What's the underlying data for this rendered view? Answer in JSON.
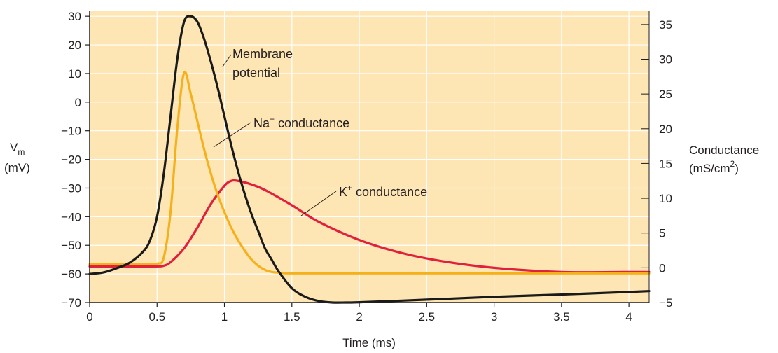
{
  "chart_data": {
    "type": "line",
    "xlabel": "Time (ms)",
    "ylabel_left": {
      "symbol": "V",
      "subscript": "m",
      "unit": "(mV)"
    },
    "ylabel_right": {
      "line1": "Conductance",
      "line2_pre": "(mS/cm",
      "line2_sup": "2",
      "line2_post": ")"
    },
    "xlim": [
      0,
      4.15
    ],
    "ylim_left": [
      -70,
      32
    ],
    "ylim_right": [
      -5,
      37
    ],
    "grid": true,
    "legend": "none",
    "x_ticks": [
      0,
      0.5,
      1,
      1.5,
      2,
      2.5,
      3,
      3.5,
      4
    ],
    "x_tick_labels": [
      "0",
      "0.5",
      "1",
      "1.5",
      "2",
      "2.5",
      "3",
      "3.5",
      "4"
    ],
    "y_left_ticks": [
      30,
      20,
      10,
      0,
      -10,
      -20,
      -30,
      -40,
      -50,
      -60,
      -70
    ],
    "y_left_tick_labels": [
      "30",
      "20",
      "10",
      "0",
      "−10",
      "−20",
      "−30",
      "−40",
      "−50",
      "−60",
      "−70"
    ],
    "y_right_ticks": [
      35,
      30,
      25,
      20,
      15,
      10,
      5,
      0,
      -5
    ],
    "y_right_tick_labels": [
      "35",
      "30",
      "25",
      "20",
      "15",
      "10",
      "5",
      "0",
      "−5"
    ],
    "colors": {
      "plot_bg": "#fde5b4",
      "grid": "#ffffff",
      "membrane": "#1a1a1a",
      "na": "#f5b11c",
      "k": "#e0203c",
      "text": "#231f20"
    },
    "series": [
      {
        "name": "Membrane potential",
        "axis": "left",
        "x": [
          0,
          0.1,
          0.2,
          0.3,
          0.4,
          0.45,
          0.5,
          0.55,
          0.6,
          0.65,
          0.7,
          0.75,
          0.8,
          0.85,
          0.9,
          0.95,
          1.0,
          1.05,
          1.1,
          1.15,
          1.2,
          1.25,
          1.3,
          1.35,
          1.4,
          1.5,
          1.6,
          1.7,
          1.8,
          1.9,
          2.0,
          2.5,
          3.0,
          3.5,
          4.0,
          4.15
        ],
        "y": [
          -60,
          -59.5,
          -58,
          -56,
          -52,
          -48,
          -40,
          -25,
          -5,
          15,
          28,
          30,
          28,
          22,
          14,
          5,
          -5,
          -15,
          -24,
          -32,
          -39,
          -45,
          -51,
          -55,
          -59,
          -65,
          -68,
          -69.5,
          -70,
          -70,
          -69.9,
          -69,
          -68,
          -67.2,
          -66.3,
          -66
        ]
      },
      {
        "name": "Na⁺ conductance",
        "axis": "right",
        "x": [
          0,
          0.2,
          0.4,
          0.5,
          0.55,
          0.6,
          0.65,
          0.7,
          0.75,
          0.8,
          0.85,
          0.9,
          0.95,
          1.0,
          1.05,
          1.1,
          1.15,
          1.2,
          1.25,
          1.3,
          1.35,
          1.4,
          1.5,
          2.0,
          3.0,
          4.0,
          4.15
        ],
        "y": [
          0.5,
          0.5,
          0.5,
          0.6,
          1.5,
          8,
          20,
          28,
          25,
          21,
          17,
          13.5,
          10.5,
          8,
          5.8,
          4,
          2.5,
          1.2,
          0.3,
          -0.3,
          -0.6,
          -0.7,
          -0.8,
          -0.8,
          -0.8,
          -0.8,
          -0.8
        ]
      },
      {
        "name": "K⁺ conductance",
        "axis": "right",
        "x": [
          0,
          0.3,
          0.5,
          0.55,
          0.6,
          0.7,
          0.8,
          0.9,
          1.0,
          1.05,
          1.1,
          1.2,
          1.3,
          1.5,
          1.7,
          2.0,
          2.3,
          2.6,
          3.0,
          3.5,
          4.0,
          4.15
        ],
        "y": [
          0.2,
          0.2,
          0.2,
          0.3,
          0.8,
          2.8,
          5.8,
          9.2,
          11.8,
          12.5,
          12.5,
          12.0,
          11.2,
          9.0,
          6.6,
          4.0,
          2.2,
          1.0,
          0.0,
          -0.6,
          -0.6,
          -0.6
        ]
      }
    ],
    "annotations": {
      "membrane_line1": "Membrane",
      "membrane_line2": "potential",
      "na_pre": "Na",
      "na_sup": "+",
      "na_post": " conductance",
      "k_pre": "K",
      "k_sup": "+",
      "k_post": " conductance"
    }
  }
}
